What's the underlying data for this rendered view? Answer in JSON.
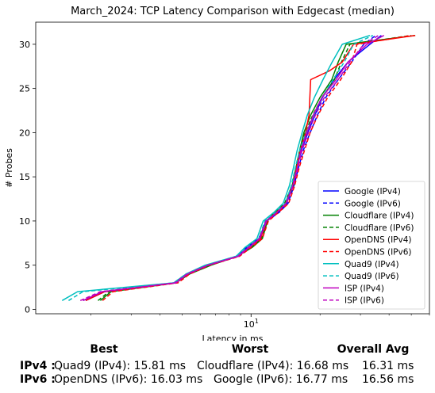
{
  "chart_data": {
    "type": "line",
    "title": "March_2024: TCP Latency Comparison with Edgecast (median)",
    "xlabel": "Latency in ms",
    "ylabel": "# Probes",
    "xscale": "log",
    "xlim": [
      1.15,
      60
    ],
    "ylim": [
      -0.5,
      32.5
    ],
    "xticks": [
      10
    ],
    "xtick_labels": [
      "10^1"
    ],
    "yticks": [
      0,
      5,
      10,
      15,
      20,
      25,
      30
    ],
    "grid": false,
    "legend_loc": "lower right",
    "series": [
      {
        "name": "Google (IPv4)",
        "color": "#0000ff",
        "dash": "solid",
        "x": [
          1.9,
          2.3,
          4.7,
          5.3,
          6.5,
          8.8,
          9.6,
          10.9,
          11.6,
          13.1,
          14.3,
          15.2,
          15.8,
          16.6,
          17.7,
          19.0,
          20.5,
          23.0,
          26.5,
          33.0,
          37.0
        ],
        "y": [
          1,
          2,
          3,
          4,
          5,
          6,
          7,
          8,
          10,
          11,
          12,
          14,
          16,
          18,
          20,
          22,
          24,
          26,
          28,
          30,
          31
        ]
      },
      {
        "name": "Google (IPv6)",
        "color": "#0000ff",
        "dash": "dashed",
        "x": [
          1.85,
          2.25,
          4.6,
          5.2,
          6.4,
          8.6,
          9.5,
          10.8,
          11.7,
          13.3,
          14.5,
          15.4,
          16.1,
          16.9,
          18.1,
          19.5,
          21.2,
          24.0,
          27.5,
          31.0,
          35.0
        ],
        "y": [
          1,
          2,
          3,
          4,
          5,
          6,
          7,
          8,
          10,
          11,
          12,
          14,
          16,
          18,
          20,
          22,
          24,
          26,
          28,
          30,
          31
        ]
      },
      {
        "name": "Cloudflare (IPv4)",
        "color": "#008000",
        "dash": "solid",
        "x": [
          2.2,
          2.45,
          4.7,
          5.4,
          6.7,
          8.7,
          10.1,
          11.2,
          11.8,
          12.8,
          14.2,
          15.3,
          15.8,
          16.3,
          17.0,
          18.2,
          20.0,
          22.5,
          24.0,
          26.0,
          52.0
        ],
        "y": [
          1,
          2,
          3,
          4,
          5,
          6,
          7,
          8,
          10,
          11,
          12,
          14,
          16,
          18,
          20,
          22,
          24,
          26,
          28,
          30,
          31
        ]
      },
      {
        "name": "Cloudflare (IPv6)",
        "color": "#008000",
        "dash": "dashed",
        "x": [
          2.15,
          2.4,
          4.65,
          5.35,
          6.6,
          8.7,
          10.0,
          11.1,
          11.7,
          12.7,
          14.0,
          15.1,
          15.7,
          16.3,
          17.2,
          18.6,
          20.4,
          23.1,
          24.8,
          27.0,
          50.0
        ],
        "y": [
          1,
          2,
          3,
          4,
          5,
          6,
          7,
          8,
          10,
          11,
          12,
          14,
          16,
          18,
          20,
          22,
          24,
          26,
          28,
          30,
          31
        ]
      },
      {
        "name": "OpenDNS (IPv4)",
        "color": "#ff0000",
        "dash": "solid",
        "x": [
          1.9,
          2.3,
          4.7,
          5.3,
          6.5,
          8.8,
          9.8,
          11.0,
          11.7,
          12.9,
          14.2,
          15.2,
          15.8,
          16.4,
          17.3,
          17.9,
          18.2,
          22.0,
          25.0,
          28.0,
          52.0
        ],
        "y": [
          1,
          2,
          3,
          4,
          5,
          6,
          7,
          8,
          10,
          11,
          12,
          14,
          16,
          18,
          20,
          22,
          26,
          27,
          28,
          30,
          31
        ]
      },
      {
        "name": "OpenDNS (IPv6)",
        "color": "#ff0000",
        "dash": "dashed",
        "x": [
          2.25,
          2.5,
          4.8,
          5.4,
          6.6,
          8.9,
          10.0,
          11.2,
          11.9,
          13.2,
          14.6,
          15.5,
          16.2,
          17.1,
          18.1,
          19.6,
          21.6,
          24.6,
          27.5,
          29.0,
          50.0
        ],
        "y": [
          1,
          2,
          3,
          4,
          5,
          6,
          7,
          8,
          10,
          11,
          12,
          14,
          16,
          18,
          20,
          22,
          24,
          26,
          28,
          30,
          31
        ]
      },
      {
        "name": "Quad9 (IPv4)",
        "color": "#00bfbf",
        "dash": "solid",
        "x": [
          1.5,
          1.75,
          4.6,
          5.2,
          6.3,
          8.6,
          9.4,
          10.6,
          11.3,
          12.6,
          13.8,
          14.7,
          15.3,
          15.9,
          16.7,
          17.6,
          18.9,
          20.6,
          22.6,
          25.0,
          33.0
        ],
        "y": [
          1,
          2,
          3,
          4,
          5,
          6,
          7,
          8,
          10,
          11,
          12,
          14,
          16,
          18,
          20,
          22,
          24,
          26,
          28,
          30,
          31
        ]
      },
      {
        "name": "Quad9 (IPv6)",
        "color": "#00bfbf",
        "dash": "dashed",
        "x": [
          1.6,
          1.85,
          4.6,
          5.25,
          6.4,
          8.7,
          9.6,
          10.8,
          11.5,
          12.9,
          14.1,
          15.0,
          15.6,
          16.3,
          17.4,
          18.8,
          20.4,
          22.8,
          25.5,
          28.0,
          34.0
        ],
        "y": [
          1,
          2,
          3,
          4,
          5,
          6,
          7,
          8,
          10,
          11,
          12,
          14,
          16,
          18,
          20,
          22,
          24,
          26,
          28,
          30,
          31
        ]
      },
      {
        "name": "ISP (IPv4)",
        "color": "#bf00bf",
        "dash": "solid",
        "x": [
          1.85,
          2.25,
          4.7,
          5.3,
          6.5,
          8.8,
          9.8,
          10.9,
          11.7,
          13.0,
          14.2,
          15.2,
          15.9,
          16.5,
          17.5,
          18.7,
          20.4,
          23.5,
          26.5,
          32.0,
          38.0
        ],
        "y": [
          1,
          2,
          3,
          4,
          5,
          6,
          7,
          8,
          10,
          11,
          12,
          14,
          16,
          18,
          20,
          22,
          24,
          26,
          28,
          30,
          31
        ]
      },
      {
        "name": "ISP (IPv6)",
        "color": "#bf00bf",
        "dash": "dashed",
        "x": [
          1.8,
          2.2,
          4.65,
          5.25,
          6.45,
          8.75,
          9.7,
          10.85,
          11.6,
          13.0,
          14.3,
          15.3,
          16.0,
          16.7,
          17.8,
          19.1,
          20.9,
          24.0,
          27.0,
          31.0,
          36.0
        ],
        "y": [
          1,
          2,
          3,
          4,
          5,
          6,
          7,
          8,
          10,
          11,
          12,
          14,
          16,
          18,
          20,
          22,
          24,
          26,
          28,
          30,
          31
        ]
      }
    ]
  },
  "summary": {
    "headers": {
      "best": "Best",
      "worst": "Worst",
      "avg": "Overall Avg"
    },
    "rows": [
      {
        "label": "IPv4 :",
        "best": "Quad9 (IPv4): 15.81 ms",
        "worst": "Cloudflare (IPv4): 16.68 ms",
        "avg": "16.31 ms"
      },
      {
        "label": "IPv6 :",
        "best": "OpenDNS (IPv6): 16.03 ms",
        "worst": "Google (IPv6): 16.77 ms",
        "avg": "16.56 ms"
      }
    ]
  }
}
